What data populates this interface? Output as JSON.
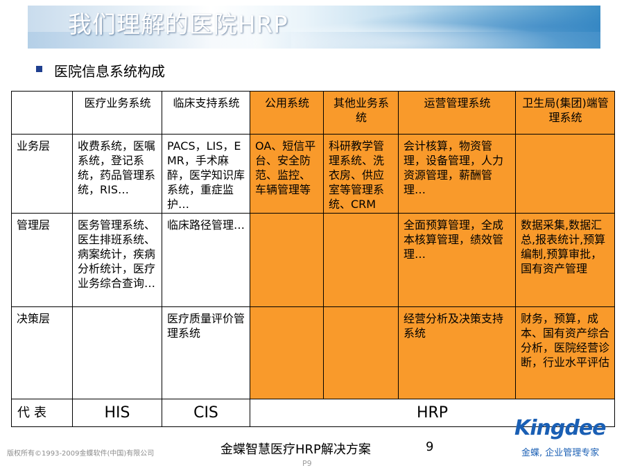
{
  "slide": {
    "title": "我们理解的医院HRP",
    "subtitle": "医院信息系统构成",
    "footer": "金蝶智慧医疗HRP解决方案",
    "page_number": "9",
    "copyright": "版权所有©1993-2009金蝶软件(中国)有限公司",
    "logo_text": "Kingdee",
    "tagline": "金蝶, 企业管理专家",
    "page_label": "P9"
  },
  "table": {
    "headers": [
      "",
      "医疗业务系统",
      "临床支持系统",
      "公用系统",
      "其他业务系统",
      "运营管理系统",
      "卫生局(集团)端管理系统"
    ],
    "rows": [
      {
        "label": "业务层",
        "cells": [
          "收费系统，医嘱系统，登记系统，药品管理系统，RIS…",
          "PACS，LIS，EMR，手术麻醉，医学知识库系统，重症监护…",
          "OA、短信平台、安全防范、监控、车辆管理等",
          "科研教学管理系统、洗衣房、供应室等管理系统、CRM",
          "会计核算，物资管理，设备管理，人力资源管理，薪酬管理…",
          ""
        ]
      },
      {
        "label": "管理层",
        "cells": [
          "医务管理系统、医生排班系统、病案统计，疾病分析统计，医疗业务综合查询…",
          "临床路径管理…",
          "",
          "",
          "全面预算管理，全成本核算管理，绩效管理…",
          "数据采集,数据汇总,报表统计,预算编制,预算审批，国有资产管理"
        ]
      },
      {
        "label": "决策层",
        "cells": [
          "",
          "医疗质量评价管理系统",
          "",
          "",
          "经营分析及决策支持系统",
          "财务，预算，成本、国有资产综合分析，医院经营诊断，行业水平评估"
        ]
      }
    ],
    "footer_row": {
      "label": "代表",
      "his": "HIS",
      "cis": "CIS",
      "hrp": "HRP"
    }
  },
  "colors": {
    "accent_orange": "#f99a2b",
    "bullet_blue": "#1f3f8f",
    "brand_blue": "#1a5fb4"
  }
}
